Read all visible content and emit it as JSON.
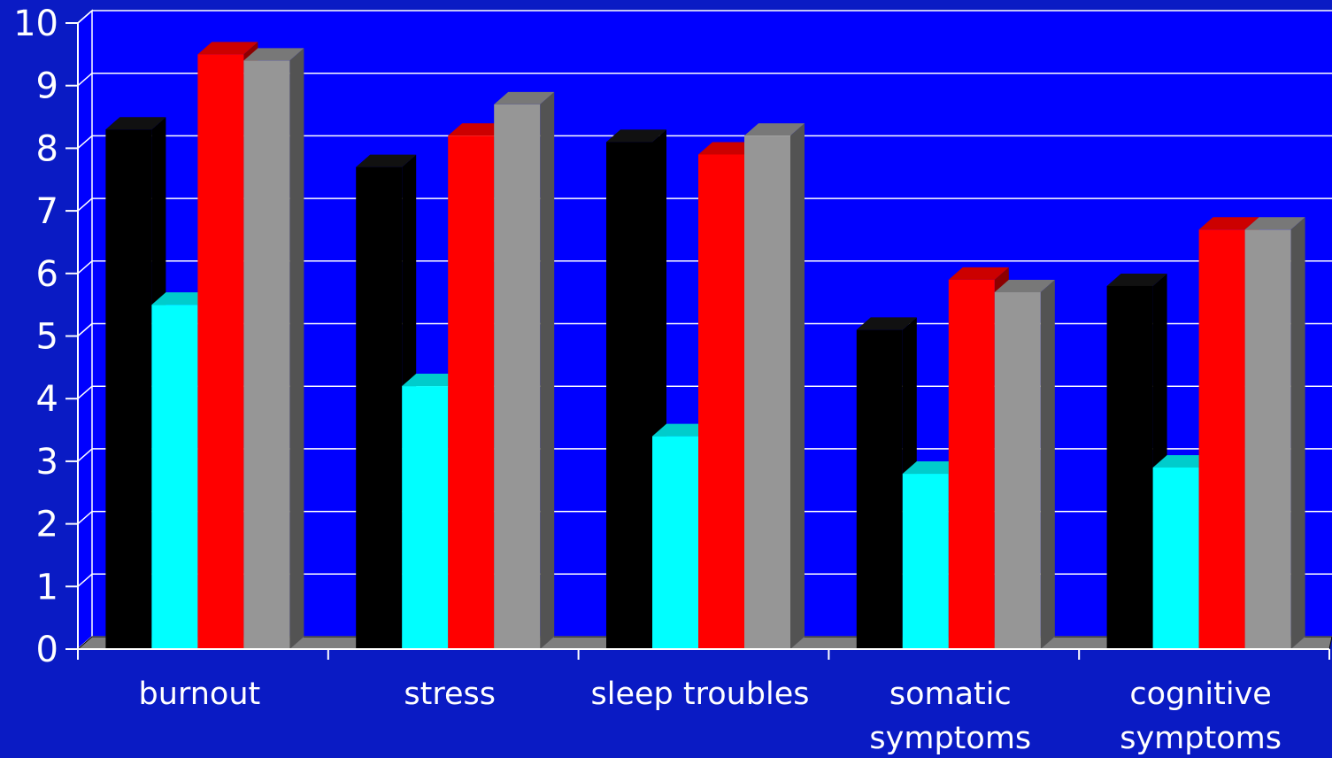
{
  "chart_data": {
    "type": "bar",
    "title": "",
    "xlabel": "",
    "ylabel": "",
    "ylim": [
      0,
      10
    ],
    "yticks": [
      "0",
      "1",
      "2",
      "3",
      "4",
      "5",
      "6",
      "7",
      "8",
      "9",
      "10"
    ],
    "grid": true,
    "legend": "none",
    "categories": [
      [
        "burnout"
      ],
      [
        "stress"
      ],
      [
        "sleep troubles"
      ],
      [
        "somatic",
        "symptoms"
      ],
      [
        "cognitive",
        "symptoms"
      ]
    ],
    "series": [
      {
        "color": "#000000",
        "values": [
          8.3,
          7.7,
          8.1,
          5.1,
          5.8
        ]
      },
      {
        "color": "#00ffff",
        "values": [
          5.5,
          4.2,
          3.4,
          2.8,
          2.9
        ]
      },
      {
        "color": "#ff0000",
        "values": [
          9.5,
          8.2,
          7.9,
          5.9,
          6.7
        ]
      },
      {
        "color": "#969696",
        "values": [
          9.4,
          8.7,
          8.2,
          5.7,
          6.7
        ]
      }
    ],
    "colors": {
      "background": "#0a1bc4",
      "plot_wall": "#0000ff",
      "gridline": "#ffffff",
      "floor": "#7f7f7f"
    }
  }
}
